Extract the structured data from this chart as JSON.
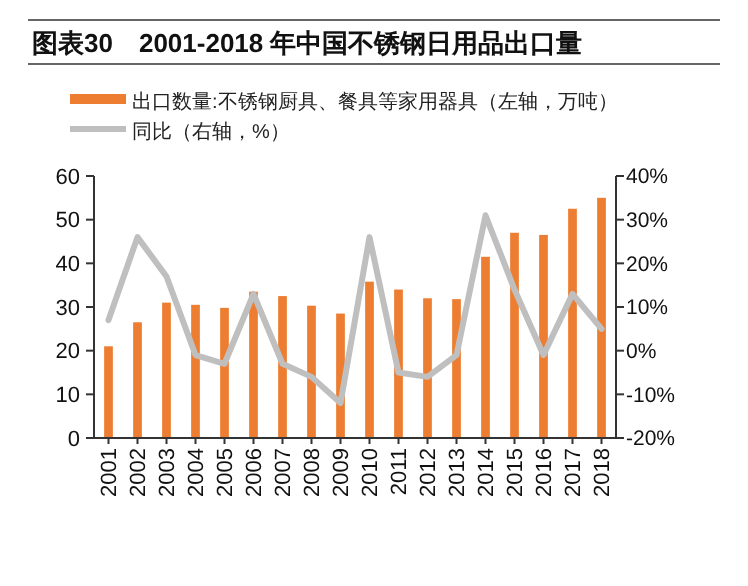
{
  "chart_data": {
    "type": "bar",
    "title": "图表30　2001-2018 年中国不锈钢日用品出口量",
    "categories": [
      "2001",
      "2002",
      "2003",
      "2004",
      "2005",
      "2006",
      "2007",
      "2008",
      "2009",
      "2010",
      "2011",
      "2012",
      "2013",
      "2014",
      "2015",
      "2016",
      "2017",
      "2018"
    ],
    "series": [
      {
        "name": "出口数量:不锈钢厨具、餐具等家用器具（左轴，万吨）",
        "color": "#ed7d31",
        "values": [
          21,
          26.5,
          31,
          30.5,
          29.8,
          33.5,
          32.5,
          30.3,
          28.5,
          35.8,
          34,
          32,
          31.8,
          41.5,
          47,
          46.5,
          52.5,
          55
        ]
      },
      {
        "name": "同比（右轴，%）",
        "type": "line",
        "axis": "y2",
        "color": "#bfbfbf",
        "values": [
          7,
          26,
          17,
          -1,
          -3,
          13,
          -3,
          -6,
          -12,
          26,
          -5,
          -6,
          -1,
          31,
          14,
          -1,
          13,
          5
        ]
      }
    ],
    "ylim": [
      0,
      60
    ],
    "yticks": [
      0,
      10,
      20,
      30,
      40,
      50,
      60
    ],
    "y2lim": [
      -20,
      40
    ],
    "y2ticks": [
      {
        "value": -20,
        "label": "-20%"
      },
      {
        "value": -10,
        "label": "-10%"
      },
      {
        "value": 0,
        "label": "0%"
      },
      {
        "value": 10,
        "label": "10%"
      },
      {
        "value": 20,
        "label": "20%"
      },
      {
        "value": 30,
        "label": "30%"
      },
      {
        "value": 40,
        "label": "40%"
      }
    ],
    "legend": "top",
    "marker": "none",
    "line_style": "solid"
  }
}
